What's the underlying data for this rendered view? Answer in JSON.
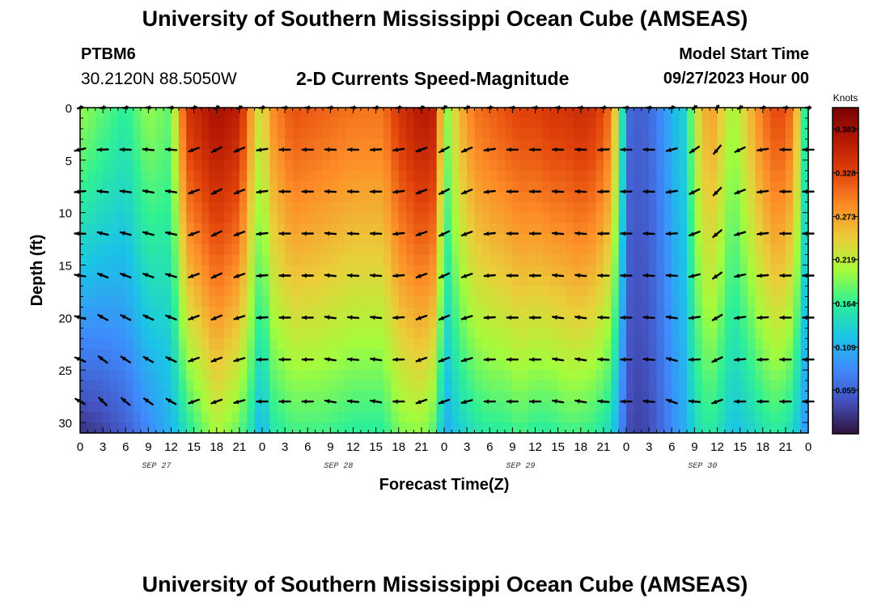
{
  "header": {
    "title": "University of Southern Mississippi Ocean Cube (AMSEAS)",
    "station": "PTBM6",
    "coords": "30.2120N  88.5050W",
    "subtitle": "2-D Currents Speed-Magnitude",
    "model_label": "Model Start Time",
    "model_time": "09/27/2023 Hour 00"
  },
  "footer": {
    "title": "University of Southern Mississippi Ocean Cube (AMSEAS)"
  },
  "chart_data": {
    "type": "heatmap",
    "title": "2-D Currents Speed-Magnitude",
    "xlabel": "Forecast Time(Z)",
    "ylabel": "Depth (ft)",
    "x_tick_labels": [
      "0",
      "3",
      "6",
      "9",
      "12",
      "15",
      "18",
      "21",
      "0",
      "3",
      "6",
      "9",
      "12",
      "15",
      "18",
      "21",
      "0",
      "3",
      "6",
      "9",
      "12",
      "15",
      "18",
      "21",
      "0",
      "3",
      "6",
      "9",
      "12",
      "15",
      "18",
      "21",
      "0"
    ],
    "x_range_hours": [
      0,
      96
    ],
    "date_labels": [
      {
        "label": "SEP 27",
        "hour": 9
      },
      {
        "label": "SEP 28",
        "hour": 33
      },
      {
        "label": "SEP 29",
        "hour": 57
      },
      {
        "label": "SEP 30",
        "hour": 81
      }
    ],
    "y_ticks": [
      0,
      5,
      10,
      15,
      20,
      25,
      30
    ],
    "y_tick_labels": [
      "0",
      "5",
      "10",
      "15",
      "20",
      "25",
      "30"
    ],
    "ylim": [
      0,
      31
    ],
    "colorbar": {
      "unit": "Knots",
      "range": [
        0.0,
        0.41
      ],
      "tick_values": [
        0.383,
        0.328,
        0.273,
        0.219,
        0.164,
        0.109,
        0.055
      ],
      "tick_labels": [
        "0.383",
        "0.328",
        "0.273",
        "0.219",
        "0.164",
        "0.109",
        "0.055"
      ]
    },
    "speed_profile": {
      "hours": [
        0,
        3,
        6,
        9,
        12,
        14,
        16,
        18,
        21,
        23,
        24,
        25,
        28,
        32,
        36,
        40,
        42,
        45,
        47,
        48,
        50,
        52,
        54,
        56,
        58,
        60,
        62,
        64,
        66,
        68,
        70,
        71.5,
        72,
        74,
        76,
        78,
        80,
        81,
        83,
        84,
        86,
        88,
        90,
        92,
        94,
        96
      ],
      "surface_knots": [
        0.2,
        0.18,
        0.16,
        0.2,
        0.18,
        0.34,
        0.36,
        0.38,
        0.36,
        0.25,
        0.22,
        0.28,
        0.32,
        0.31,
        0.3,
        0.3,
        0.34,
        0.37,
        0.36,
        0.18,
        0.26,
        0.3,
        0.31,
        0.32,
        0.33,
        0.33,
        0.34,
        0.34,
        0.35,
        0.34,
        0.3,
        0.15,
        0.06,
        0.05,
        0.07,
        0.11,
        0.14,
        0.22,
        0.28,
        0.26,
        0.2,
        0.25,
        0.3,
        0.33,
        0.3,
        0.12
      ],
      "bottom_knots": [
        0.02,
        0.03,
        0.05,
        0.08,
        0.11,
        0.15,
        0.18,
        0.21,
        0.18,
        0.14,
        0.1,
        0.15,
        0.17,
        0.17,
        0.16,
        0.16,
        0.19,
        0.2,
        0.17,
        0.1,
        0.13,
        0.15,
        0.16,
        0.16,
        0.17,
        0.16,
        0.16,
        0.17,
        0.17,
        0.16,
        0.14,
        0.07,
        0.04,
        0.03,
        0.05,
        0.08,
        0.11,
        0.14,
        0.16,
        0.15,
        0.12,
        0.13,
        0.15,
        0.16,
        0.14,
        0.08
      ]
    },
    "arrows": {
      "hours": [
        0,
        3,
        6,
        9,
        12,
        15,
        18,
        21,
        24,
        27,
        30,
        33,
        36,
        39,
        42,
        45,
        48,
        51,
        54,
        57,
        60,
        63,
        66,
        69,
        72,
        75,
        78,
        81,
        84,
        87,
        90,
        93,
        96
      ],
      "depths_ft": [
        0,
        4,
        8,
        12,
        16,
        20,
        24,
        28
      ],
      "direction_deg_by_hour": [
        200,
        190,
        185,
        180,
        180,
        200,
        210,
        205,
        190,
        180,
        180,
        180,
        180,
        185,
        190,
        200,
        210,
        205,
        190,
        180,
        180,
        180,
        180,
        185,
        180,
        180,
        200,
        220,
        235,
        210,
        190,
        180,
        180
      ],
      "bottom_direction_deg_by_hour": [
        150,
        135,
        140,
        145,
        150,
        200,
        200,
        195,
        180,
        180,
        180,
        170,
        175,
        170,
        180,
        200,
        200,
        195,
        180,
        180,
        180,
        170,
        170,
        175,
        180,
        175,
        160,
        175,
        200,
        180,
        180,
        180,
        180
      ]
    }
  }
}
